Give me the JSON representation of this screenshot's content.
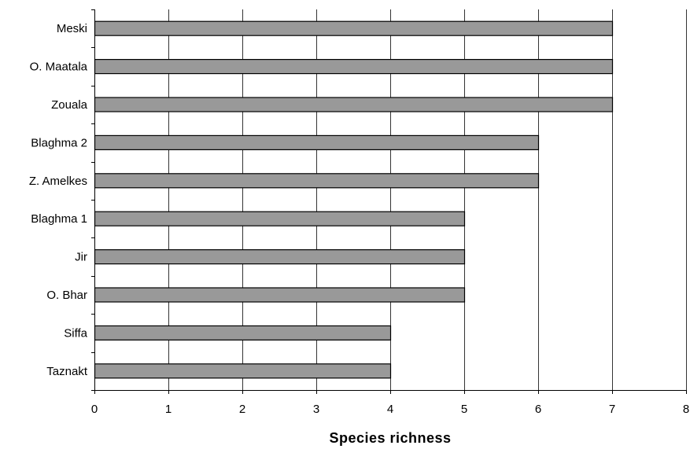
{
  "chart_data": {
    "type": "bar",
    "orientation": "horizontal",
    "title": "",
    "xlabel": "Species richness",
    "ylabel": "",
    "categories": [
      "Meski",
      "O. Maatala",
      "Zouala",
      "Blaghma 2",
      "Z. Amelkes",
      "Blaghma 1",
      "Jir",
      "O. Bhar",
      "Siffa",
      "Taznakt"
    ],
    "values": [
      7,
      7,
      7,
      6,
      6,
      5,
      5,
      5,
      4,
      4
    ],
    "xlim": [
      0,
      8
    ],
    "xticks": [
      0,
      1,
      2,
      3,
      4,
      5,
      6,
      7,
      8
    ],
    "grid": "vertical",
    "legend": "none",
    "bar_color": "#999999",
    "bar_edge_color": "#000000",
    "grid_color": "#000000"
  }
}
